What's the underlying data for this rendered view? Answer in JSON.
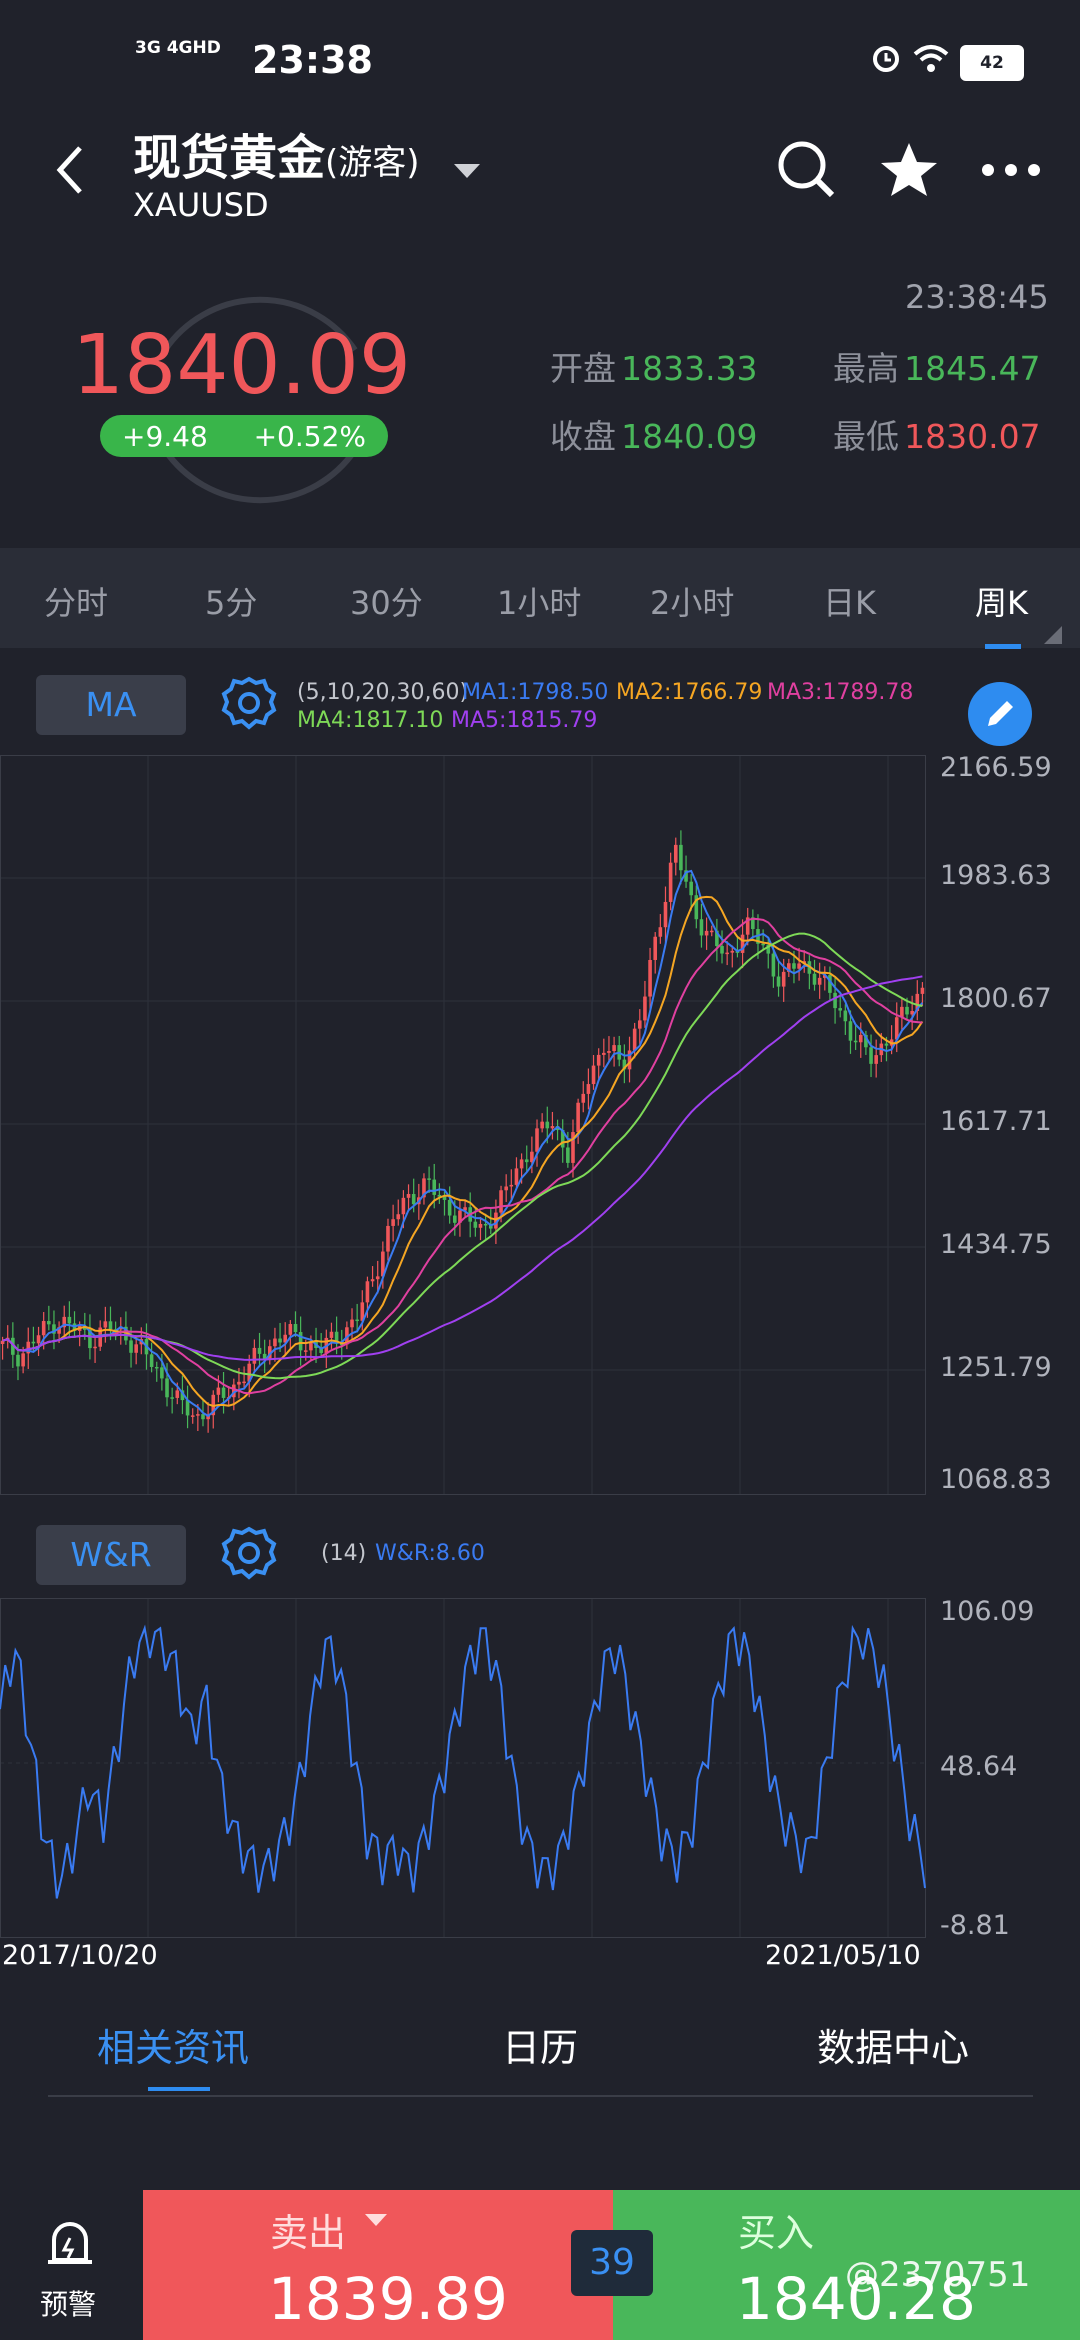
{
  "status": {
    "network": "3G 4GHD",
    "time": "23:38",
    "battery": "42"
  },
  "header": {
    "title": "现货黄金",
    "title_suffix": "(游客)",
    "symbol": "XAUUSD"
  },
  "quote": {
    "price": "1840.09",
    "change": "+9.48",
    "change_pct": "+0.52%",
    "time": "23:38:45",
    "open_label": "开盘",
    "open": "1833.33",
    "high_label": "最高",
    "high": "1845.47",
    "close_label": "收盘",
    "close": "1840.09",
    "low_label": "最低",
    "low": "1830.07"
  },
  "period_tabs": [
    "分时",
    "5分",
    "30分",
    "1小时",
    "2小时",
    "日K",
    "周K"
  ],
  "active_period": "周K",
  "ma_panel": {
    "button": "MA",
    "params": "(5,10,20,30,60)",
    "ma1": "MA1:1798.50",
    "ma2": "MA2:1766.79",
    "ma3": "MA3:1789.78",
    "ma4": "MA4:1817.10",
    "ma5": "MA5:1815.79",
    "y_ticks": [
      "2166.59",
      "1983.63",
      "1800.67",
      "1617.71",
      "1434.75",
      "1251.79",
      "1068.83"
    ]
  },
  "wr_panel": {
    "button": "W&R",
    "params": "(14)",
    "value": "W&R:8.60",
    "y_ticks": [
      "106.09",
      "48.64",
      "-8.81"
    ]
  },
  "x_axis": {
    "start": "2017/10/20",
    "end": "2021/05/10"
  },
  "news_tabs": [
    "相关资讯",
    "日历",
    "数据中心"
  ],
  "bottom_bar": {
    "alert_label": "预警",
    "sell_label": "卖出",
    "sell_price": "1839.89",
    "spread": "39",
    "buy_label": "买入",
    "buy_price": "1840.28",
    "watermark": "@2370751"
  },
  "colors": {
    "up": "#f0575a",
    "down": "#49b75a",
    "accent": "#2e8cf0",
    "ma1": "#3a7bf2",
    "ma2": "#f5a623",
    "ma3": "#e040a0",
    "ma4": "#7ed957",
    "ma5": "#a040f0"
  },
  "chart_data": [
    {
      "type": "line",
      "title": "",
      "x_range": [
        "2017/10/20",
        "2021/05/10"
      ],
      "ylim": [
        1068.83,
        2166.59
      ],
      "series": [
        {
          "name": "MA1:1798.50"
        },
        {
          "name": "MA2:1766.79"
        },
        {
          "name": "MA3:1789.78"
        },
        {
          "name": "MA4:1817.10"
        },
        {
          "name": "MA5:1815.79"
        }
      ],
      "price_points": [
        1290,
        1275,
        1305,
        1330,
        1318,
        1300,
        1320,
        1305,
        1280,
        1240,
        1200,
        1180,
        1205,
        1225,
        1260,
        1290,
        1310,
        1295,
        1285,
        1305,
        1330,
        1400,
        1480,
        1520,
        1540,
        1505,
        1490,
        1470,
        1500,
        1560,
        1600,
        1640,
        1580,
        1700,
        1750,
        1720,
        1790,
        1920,
        2060,
        1960,
        1920,
        1880,
        1940,
        1900,
        1850,
        1880,
        1860,
        1820,
        1770,
        1730,
        1760,
        1800,
        1840
      ]
    },
    {
      "type": "line",
      "title": "",
      "x_range": [
        "2017/10/20",
        "2021/05/10"
      ],
      "ylim": [
        -8.81,
        106.09
      ],
      "series": [
        {
          "name": "W&R:8.60"
        }
      ],
      "points": [
        70,
        95,
        60,
        20,
        0,
        15,
        40,
        25,
        55,
        90,
        100,
        98,
        85,
        60,
        75,
        40,
        20,
        10,
        5,
        15,
        30,
        60,
        95,
        90,
        55,
        20,
        10,
        15,
        5,
        20,
        40,
        65,
        90,
        100,
        80,
        40,
        15,
        5,
        10,
        30,
        55,
        85,
        95,
        70,
        45,
        20,
        10,
        20,
        50,
        80,
        100,
        90,
        60,
        30,
        20,
        10,
        40,
        70,
        95,
        100,
        85,
        55,
        25,
        8
      ]
    }
  ]
}
